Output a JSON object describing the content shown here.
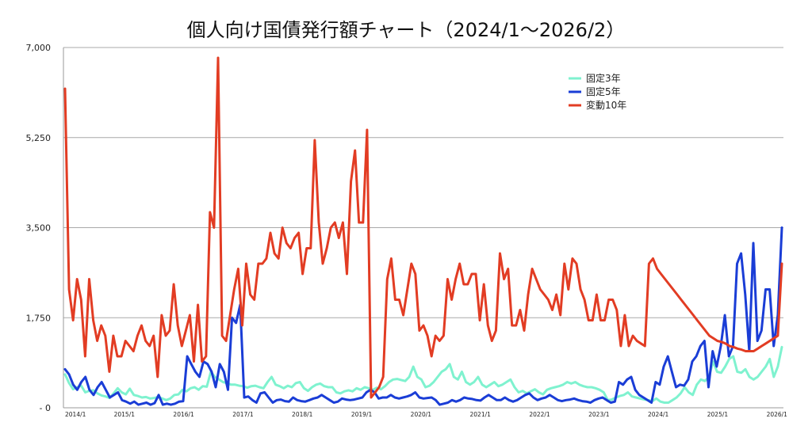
{
  "chart_data": {
    "type": "line",
    "title": "個人向け国債発行額チャート（2024/1～2026/2）",
    "y_tick_labels": [
      "- 0",
      "1,750",
      "3,500",
      "5,250",
      "7,000"
    ],
    "y_ticks": [
      0,
      1750,
      3500,
      5250,
      7000
    ],
    "ylim": [
      0,
      7000
    ],
    "x_tick_labels": [
      "2014/1",
      "2015/1",
      "2016/1",
      "2017/1",
      "2018/1",
      "2019/1",
      "2020/1",
      "2021/1",
      "2022/1",
      "2023/1",
      "2024/1",
      "2025/1",
      "2026/1"
    ],
    "x_start_year": 2014,
    "x_end_year": 2026,
    "grid": true,
    "legend_position": "top-right",
    "series": [
      {
        "name": "固定3年",
        "color": "#7ff2cf",
        "values": [
          650,
          480,
          360,
          400,
          430,
          300,
          330,
          340,
          280,
          240,
          220,
          190,
          280,
          380,
          300,
          260,
          370,
          250,
          230,
          200,
          210,
          180,
          190,
          210,
          180,
          150,
          180,
          250,
          260,
          350,
          320,
          380,
          400,
          350,
          420,
          410,
          700,
          600,
          550,
          500,
          480,
          450,
          450,
          430,
          420,
          390,
          420,
          430,
          400,
          380,
          500,
          600,
          450,
          420,
          380,
          430,
          400,
          480,
          500,
          380,
          330,
          400,
          450,
          470,
          420,
          400,
          400,
          300,
          280,
          320,
          340,
          320,
          380,
          350,
          400,
          380,
          350,
          390,
          360,
          420,
          500,
          550,
          560,
          540,
          520,
          600,
          800,
          600,
          550,
          400,
          430,
          500,
          600,
          700,
          750,
          850,
          600,
          550,
          700,
          500,
          450,
          500,
          600,
          450,
          400,
          450,
          500,
          420,
          450,
          500,
          550,
          400,
          300,
          330,
          280,
          320,
          360,
          300,
          260,
          350,
          380,
          400,
          420,
          450,
          500,
          470,
          500,
          450,
          420,
          400,
          400,
          380,
          350,
          300,
          150,
          160,
          200,
          230,
          250,
          300,
          220,
          200,
          180,
          160,
          150,
          130,
          180,
          120,
          100,
          100,
          150,
          200,
          280,
          400,
          300,
          250,
          450,
          550,
          520,
          600,
          900,
          700,
          680,
          800,
          950,
          1000,
          700,
          680,
          750,
          600,
          550,
          600,
          700,
          800,
          950,
          600,
          800,
          1180
        ]
      },
      {
        "name": "固定5年",
        "color": "#1a3dd6",
        "values": [
          750,
          650,
          450,
          350,
          500,
          600,
          350,
          250,
          400,
          500,
          350,
          200,
          250,
          300,
          150,
          120,
          80,
          120,
          60,
          80,
          100,
          60,
          90,
          250,
          60,
          80,
          60,
          80,
          120,
          130,
          1000,
          850,
          700,
          600,
          900,
          850,
          700,
          400,
          850,
          700,
          350,
          1750,
          1650,
          2000,
          200,
          220,
          150,
          100,
          280,
          300,
          200,
          100,
          150,
          160,
          130,
          120,
          200,
          150,
          130,
          120,
          150,
          180,
          200,
          250,
          200,
          150,
          100,
          120,
          180,
          160,
          150,
          160,
          180,
          200,
          300,
          350,
          300,
          180,
          200,
          200,
          250,
          200,
          180,
          200,
          220,
          250,
          300,
          200,
          180,
          190,
          200,
          150,
          60,
          80,
          100,
          150,
          120,
          150,
          200,
          180,
          170,
          150,
          140,
          200,
          250,
          200,
          150,
          150,
          200,
          150,
          120,
          150,
          200,
          250,
          280,
          200,
          150,
          180,
          200,
          250,
          200,
          150,
          130,
          150,
          160,
          180,
          150,
          130,
          120,
          100,
          150,
          180,
          200,
          150,
          100,
          120,
          500,
          450,
          550,
          600,
          350,
          250,
          200,
          150,
          100,
          500,
          450,
          800,
          1000,
          700,
          400,
          450,
          430,
          550,
          900,
          1000,
          1200,
          1300,
          400,
          1100,
          800,
          1200,
          1800,
          1000,
          1200,
          2800,
          3000,
          2200,
          1100,
          3200,
          1300,
          1500,
          2300,
          2300,
          1200,
          1800,
          3500
        ]
      },
      {
        "name": "変動10年",
        "color": "#e23c23",
        "values": [
          6200,
          2300,
          1700,
          2500,
          2100,
          1000,
          2500,
          1700,
          1300,
          1600,
          1400,
          700,
          1400,
          1000,
          1000,
          1300,
          1200,
          1100,
          1400,
          1600,
          1300,
          1200,
          1400,
          600,
          1800,
          1400,
          1500,
          2400,
          1600,
          1200,
          1500,
          1800,
          900,
          2000,
          900,
          1000,
          3800,
          3500,
          6800,
          1400,
          1300,
          1800,
          2300,
          2700,
          1600,
          2800,
          2200,
          2100,
          2800,
          2800,
          2900,
          3400,
          3000,
          2900,
          3500,
          3200,
          3100,
          3300,
          3400,
          2600,
          3100,
          3100,
          5200,
          3600,
          2800,
          3100,
          3500,
          3600,
          3300,
          3600,
          2600,
          4400,
          5000,
          3600,
          3600,
          5400,
          200,
          300,
          400,
          600,
          2500,
          2900,
          2100,
          2100,
          1800,
          2300,
          2800,
          2600,
          1500,
          1600,
          1400,
          1000,
          1400,
          1300,
          1400,
          2500,
          2100,
          2500,
          2800,
          2400,
          2400,
          2600,
          2600,
          1700,
          2400,
          1600,
          1300,
          1500,
          3000,
          2500,
          2700,
          1600,
          1600,
          1900,
          1500,
          2200,
          2700,
          2500,
          2300,
          2200,
          2100,
          1900,
          2200,
          1800,
          2800,
          2300,
          2900,
          2800,
          2300,
          2100,
          1700,
          1700,
          2200,
          1700,
          1700,
          2100,
          2100,
          1900,
          1200,
          1800,
          1200,
          1400,
          1300,
          1250,
          1200,
          2800,
          2900,
          2700,
          2600,
          2500,
          2400,
          2300,
          2200,
          2100,
          2000,
          1900,
          1800,
          1700,
          1600,
          1500,
          1400,
          1350,
          1300,
          1280,
          1250,
          1200,
          1180,
          1150,
          1130,
          1100,
          1100,
          1100,
          1150,
          1200,
          1250,
          1300,
          1350,
          1400,
          2800
        ]
      }
    ]
  }
}
